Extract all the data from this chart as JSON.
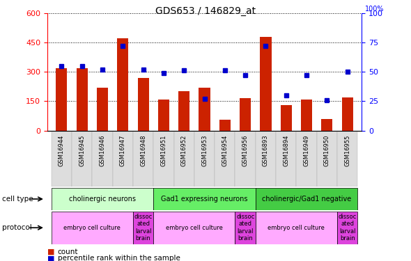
{
  "title": "GDS653 / 146829_at",
  "samples": [
    "GSM16944",
    "GSM16945",
    "GSM16946",
    "GSM16947",
    "GSM16948",
    "GSM16951",
    "GSM16952",
    "GSM16953",
    "GSM16954",
    "GSM16956",
    "GSM16893",
    "GSM16894",
    "GSM16949",
    "GSM16950",
    "GSM16955"
  ],
  "counts": [
    320,
    320,
    220,
    470,
    270,
    160,
    200,
    220,
    55,
    165,
    480,
    130,
    160,
    60,
    170
  ],
  "percentile": [
    55,
    55,
    52,
    72,
    52,
    49,
    51,
    27,
    51,
    47,
    72,
    30,
    47,
    26,
    50
  ],
  "cell_type_groups": [
    {
      "label": "cholinergic neurons",
      "start": 0,
      "end": 4,
      "color": "#ccffcc"
    },
    {
      "label": "Gad1 expressing neurons",
      "start": 5,
      "end": 9,
      "color": "#66ee66"
    },
    {
      "label": "cholinergic/Gad1 negative",
      "start": 10,
      "end": 14,
      "color": "#44cc44"
    }
  ],
  "protocol_groups": [
    {
      "label": "embryo cell culture",
      "start": 0,
      "end": 3,
      "color": "#ffaaff"
    },
    {
      "label": "dissoc\nated\nlarval\nbrain",
      "start": 4,
      "end": 4,
      "color": "#dd44dd"
    },
    {
      "label": "embryo cell culture",
      "start": 5,
      "end": 8,
      "color": "#ffaaff"
    },
    {
      "label": "dissoc\nated\nlarval\nbrain",
      "start": 9,
      "end": 9,
      "color": "#dd44dd"
    },
    {
      "label": "embryo cell culture",
      "start": 10,
      "end": 13,
      "color": "#ffaaff"
    },
    {
      "label": "dissoc\nated\nlarval\nbrain",
      "start": 14,
      "end": 14,
      "color": "#dd44dd"
    }
  ],
  "bar_color": "#cc2200",
  "dot_color": "#0000cc",
  "ylim_left": [
    0,
    600
  ],
  "ylim_right": [
    0,
    100
  ],
  "yticks_left": [
    0,
    150,
    300,
    450,
    600
  ],
  "yticks_right": [
    0,
    25,
    50,
    75,
    100
  ],
  "fig_width": 5.9,
  "fig_height": 3.75,
  "dpi": 100
}
